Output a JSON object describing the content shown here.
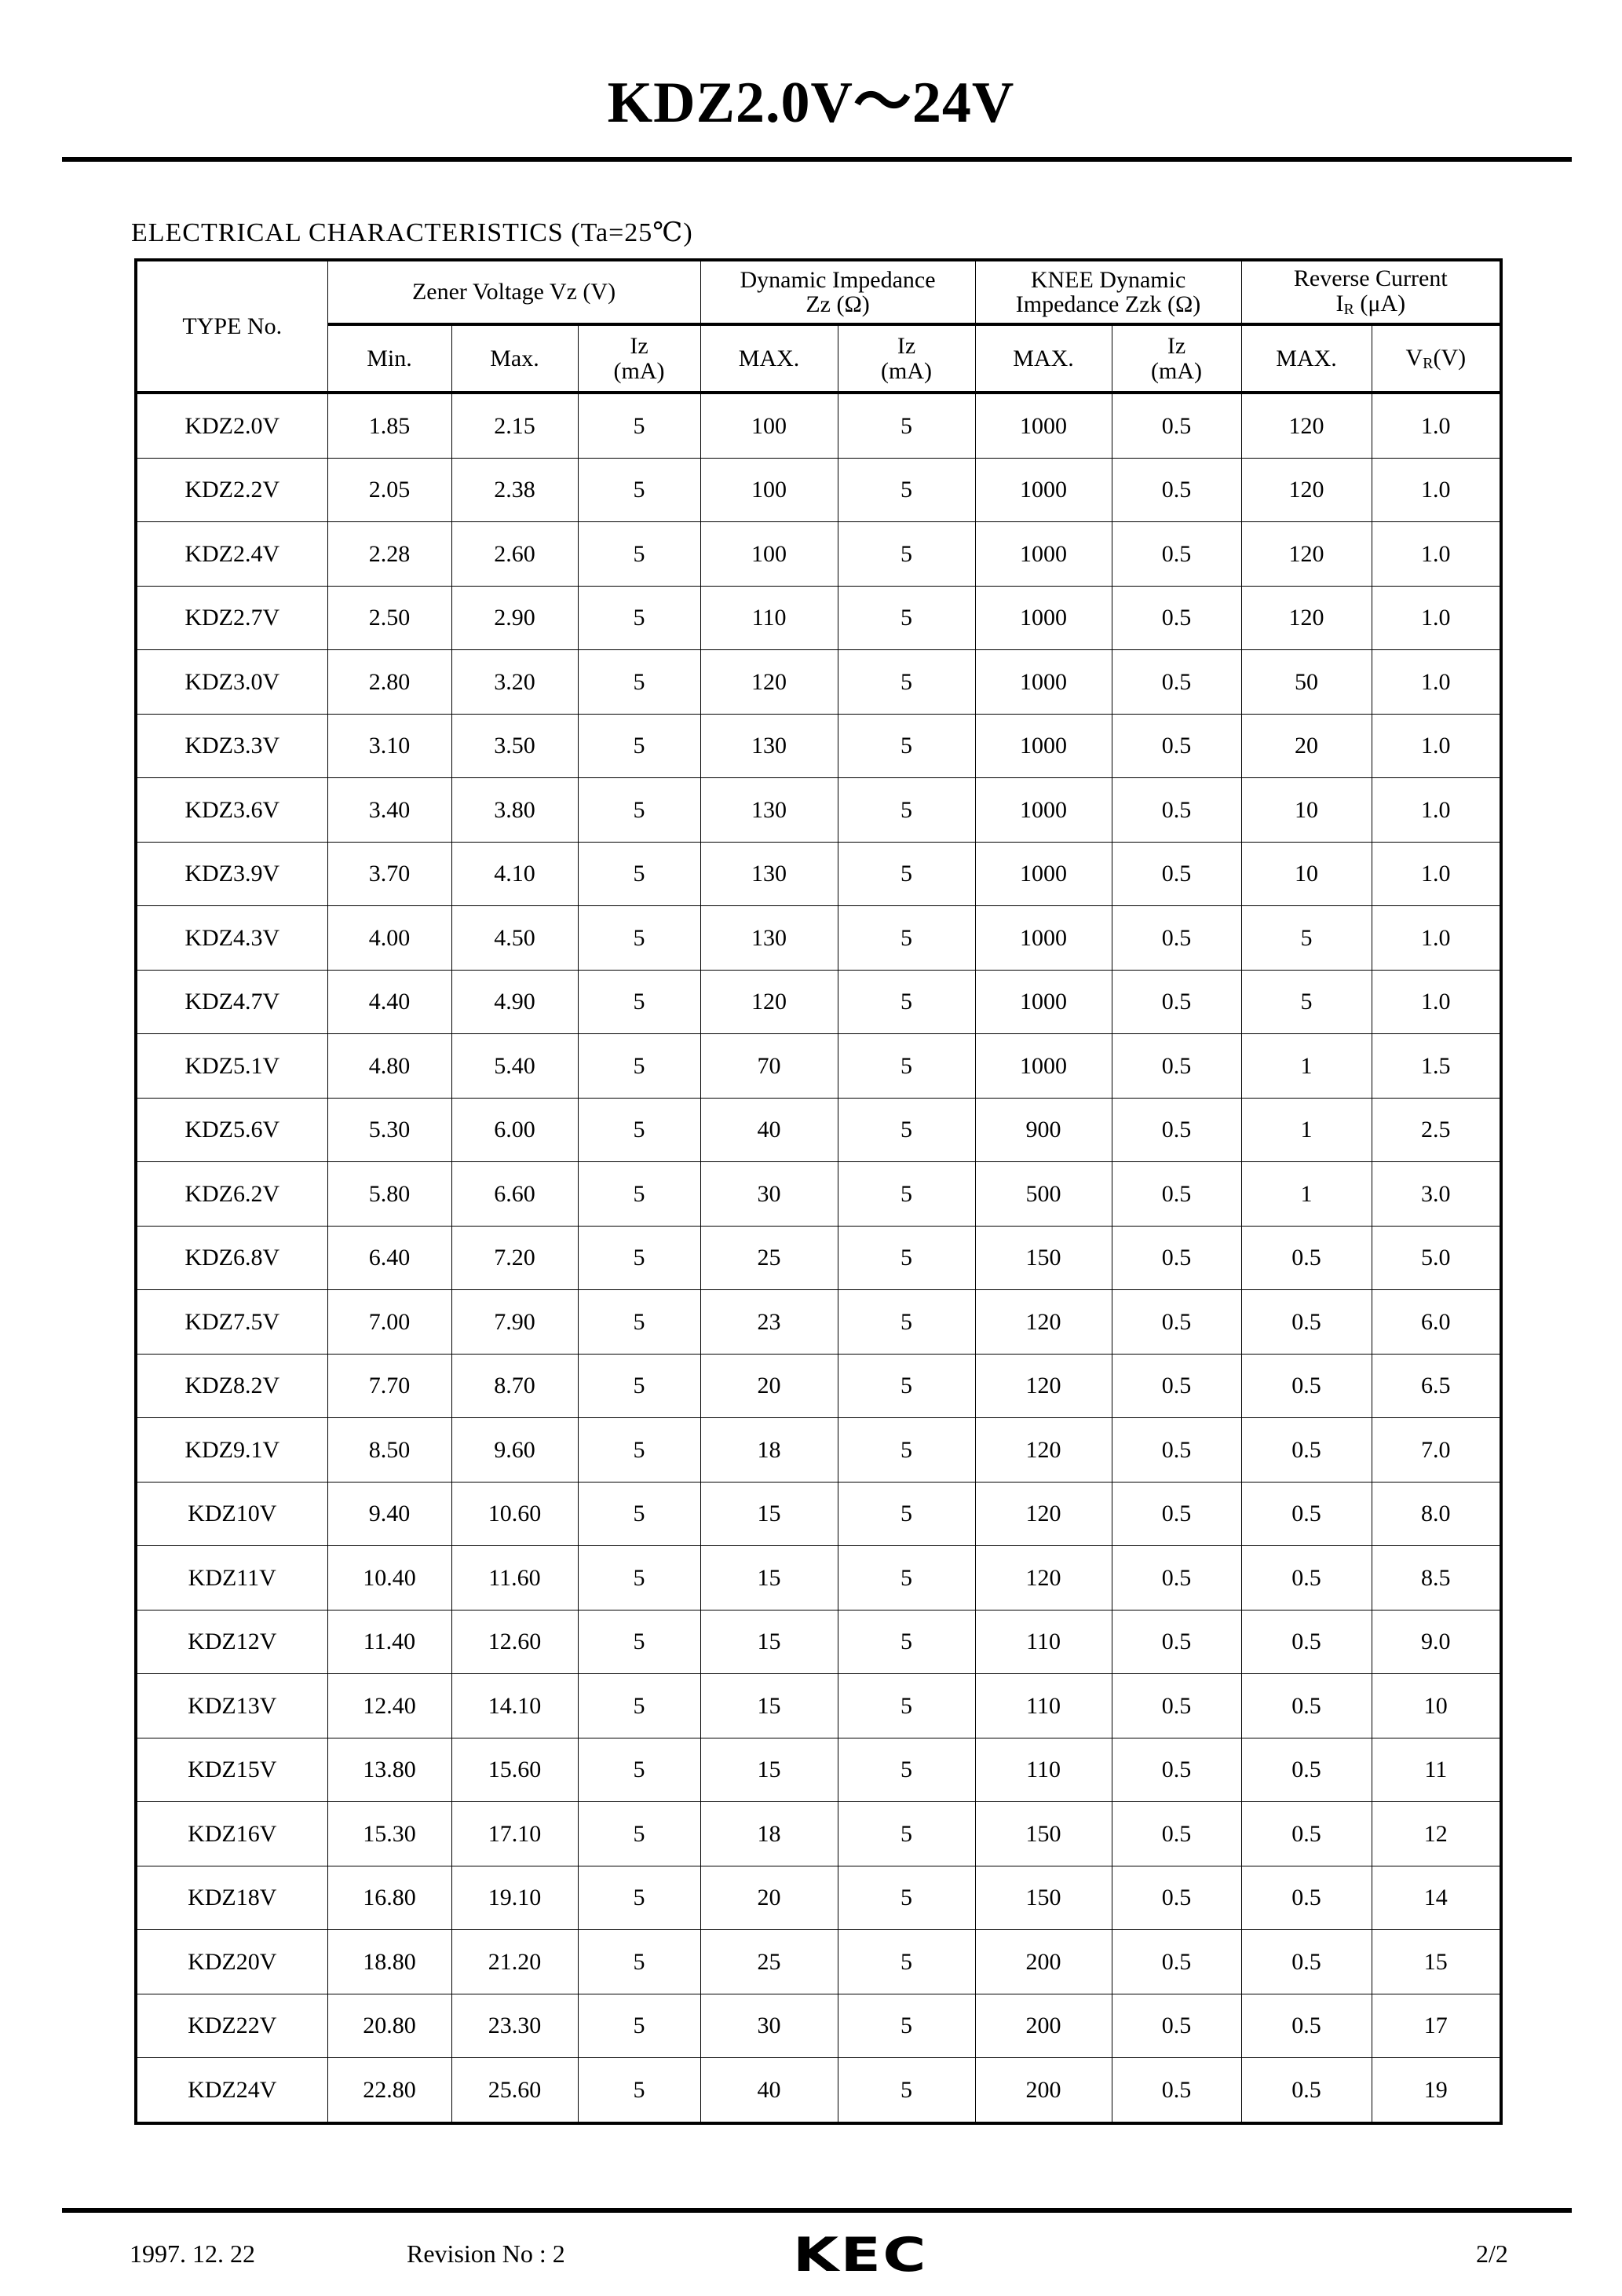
{
  "title": "KDZ2.0V～24V",
  "section_title": "ELECTRICAL  CHARACTERISTICS (Ta=25℃)",
  "header": {
    "type_no": "TYPE No.",
    "zener_voltage": "Zener Voltage Vz (V)",
    "dynamic_impedance_l1": "Dynamic Impedance",
    "dynamic_impedance_l2": "Zz (Ω)",
    "knee_l1": "KNEE Dynamic",
    "knee_l2": "Impedance Zzk (Ω)",
    "reverse_l1": "Reverse Current",
    "reverse_l2_main": "I",
    "reverse_l2_sub": "R",
    "reverse_l2_unit": " (μA)",
    "min": "Min.",
    "max": "Max.",
    "iz_l1": "Iz",
    "iz_l2": "(mA)",
    "max_upper": "MAX.",
    "vr_main": "V",
    "vr_sub": "R",
    "vr_unit": "(V)"
  },
  "rows": [
    [
      "KDZ2.0V",
      "1.85",
      "2.15",
      "5",
      "100",
      "5",
      "1000",
      "0.5",
      "120",
      "1.0"
    ],
    [
      "KDZ2.2V",
      "2.05",
      "2.38",
      "5",
      "100",
      "5",
      "1000",
      "0.5",
      "120",
      "1.0"
    ],
    [
      "KDZ2.4V",
      "2.28",
      "2.60",
      "5",
      "100",
      "5",
      "1000",
      "0.5",
      "120",
      "1.0"
    ],
    [
      "KDZ2.7V",
      "2.50",
      "2.90",
      "5",
      "110",
      "5",
      "1000",
      "0.5",
      "120",
      "1.0"
    ],
    [
      "KDZ3.0V",
      "2.80",
      "3.20",
      "5",
      "120",
      "5",
      "1000",
      "0.5",
      "50",
      "1.0"
    ],
    [
      "KDZ3.3V",
      "3.10",
      "3.50",
      "5",
      "130",
      "5",
      "1000",
      "0.5",
      "20",
      "1.0"
    ],
    [
      "KDZ3.6V",
      "3.40",
      "3.80",
      "5",
      "130",
      "5",
      "1000",
      "0.5",
      "10",
      "1.0"
    ],
    [
      "KDZ3.9V",
      "3.70",
      "4.10",
      "5",
      "130",
      "5",
      "1000",
      "0.5",
      "10",
      "1.0"
    ],
    [
      "KDZ4.3V",
      "4.00",
      "4.50",
      "5",
      "130",
      "5",
      "1000",
      "0.5",
      "5",
      "1.0"
    ],
    [
      "KDZ4.7V",
      "4.40",
      "4.90",
      "5",
      "120",
      "5",
      "1000",
      "0.5",
      "5",
      "1.0"
    ],
    [
      "KDZ5.1V",
      "4.80",
      "5.40",
      "5",
      "70",
      "5",
      "1000",
      "0.5",
      "1",
      "1.5"
    ],
    [
      "KDZ5.6V",
      "5.30",
      "6.00",
      "5",
      "40",
      "5",
      "900",
      "0.5",
      "1",
      "2.5"
    ],
    [
      "KDZ6.2V",
      "5.80",
      "6.60",
      "5",
      "30",
      "5",
      "500",
      "0.5",
      "1",
      "3.0"
    ],
    [
      "KDZ6.8V",
      "6.40",
      "7.20",
      "5",
      "25",
      "5",
      "150",
      "0.5",
      "0.5",
      "5.0"
    ],
    [
      "KDZ7.5V",
      "7.00",
      "7.90",
      "5",
      "23",
      "5",
      "120",
      "0.5",
      "0.5",
      "6.0"
    ],
    [
      "KDZ8.2V",
      "7.70",
      "8.70",
      "5",
      "20",
      "5",
      "120",
      "0.5",
      "0.5",
      "6.5"
    ],
    [
      "KDZ9.1V",
      "8.50",
      "9.60",
      "5",
      "18",
      "5",
      "120",
      "0.5",
      "0.5",
      "7.0"
    ],
    [
      "KDZ10V",
      "9.40",
      "10.60",
      "5",
      "15",
      "5",
      "120",
      "0.5",
      "0.5",
      "8.0"
    ],
    [
      "KDZ11V",
      "10.40",
      "11.60",
      "5",
      "15",
      "5",
      "120",
      "0.5",
      "0.5",
      "8.5"
    ],
    [
      "KDZ12V",
      "11.40",
      "12.60",
      "5",
      "15",
      "5",
      "110",
      "0.5",
      "0.5",
      "9.0"
    ],
    [
      "KDZ13V",
      "12.40",
      "14.10",
      "5",
      "15",
      "5",
      "110",
      "0.5",
      "0.5",
      "10"
    ],
    [
      "KDZ15V",
      "13.80",
      "15.60",
      "5",
      "15",
      "5",
      "110",
      "0.5",
      "0.5",
      "11"
    ],
    [
      "KDZ16V",
      "15.30",
      "17.10",
      "5",
      "18",
      "5",
      "150",
      "0.5",
      "0.5",
      "12"
    ],
    [
      "KDZ18V",
      "16.80",
      "19.10",
      "5",
      "20",
      "5",
      "150",
      "0.5",
      "0.5",
      "14"
    ],
    [
      "KDZ20V",
      "18.80",
      "21.20",
      "5",
      "25",
      "5",
      "200",
      "0.5",
      "0.5",
      "15"
    ],
    [
      "KDZ22V",
      "20.80",
      "23.30",
      "5",
      "30",
      "5",
      "200",
      "0.5",
      "0.5",
      "17"
    ],
    [
      "KDZ24V",
      "22.80",
      "25.60",
      "5",
      "40",
      "5",
      "200",
      "0.5",
      "0.5",
      "19"
    ]
  ],
  "footer": {
    "date": "1997. 12. 22",
    "revision": "Revision No : 2",
    "logo": "KEC",
    "page": "2/2"
  }
}
